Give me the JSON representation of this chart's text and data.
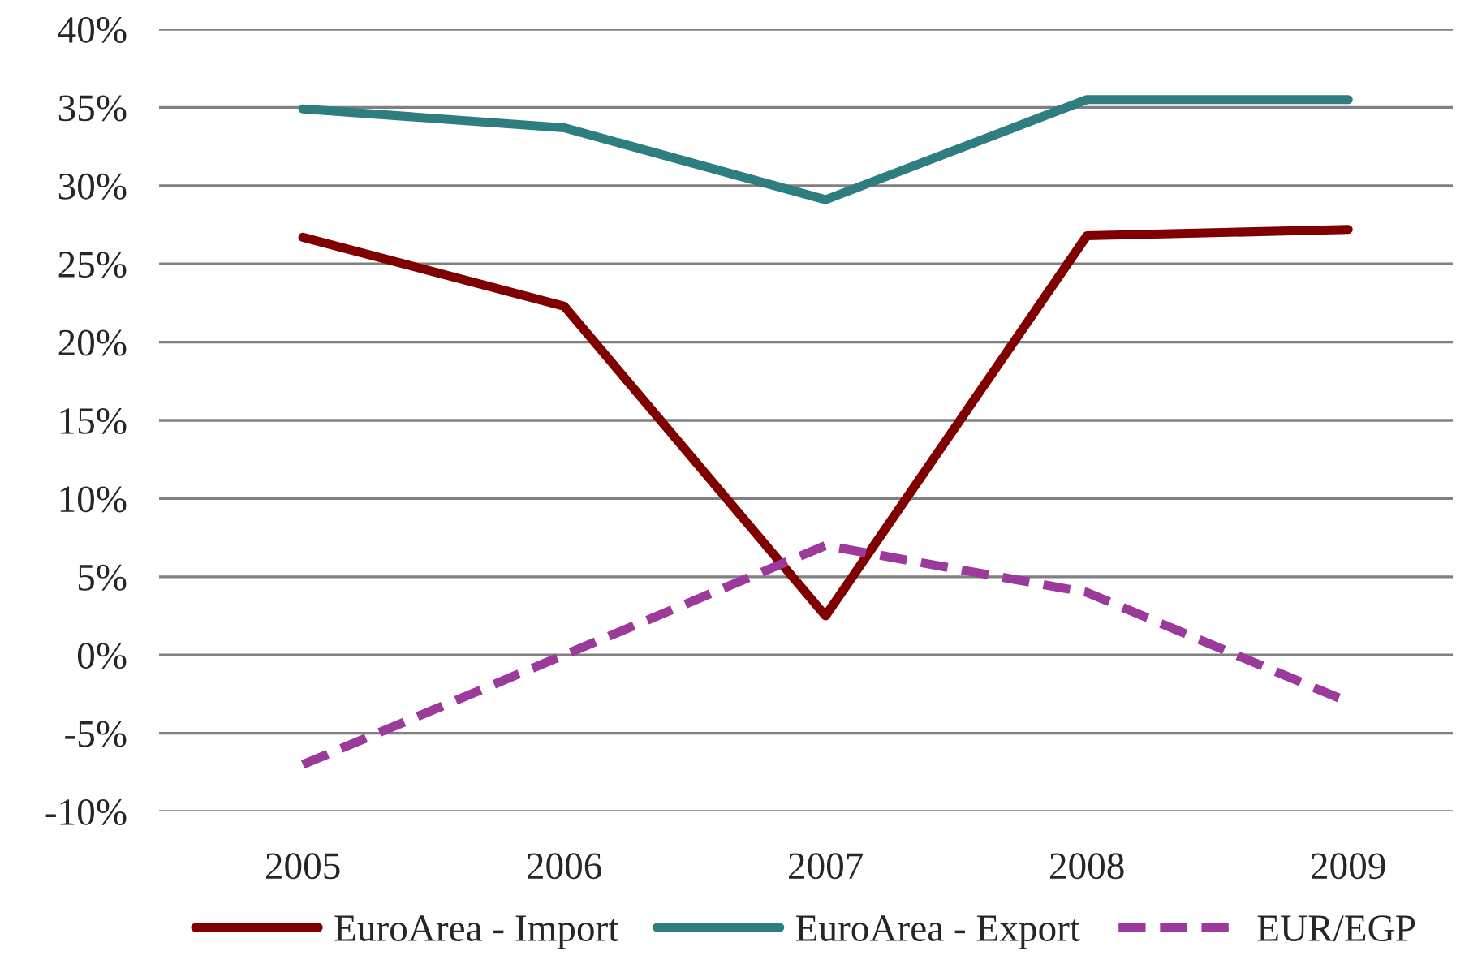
{
  "chart_data": {
    "type": "line",
    "categories": [
      "2005",
      "2006",
      "2007",
      "2008",
      "2009"
    ],
    "series": [
      {
        "name": "EuroArea - Import",
        "color": "#800000",
        "values": [
          26.7,
          22.3,
          2.5,
          26.8,
          27.2
        ],
        "line_style": "solid"
      },
      {
        "name": "EuroArea - Export",
        "color": "#2e7d7f",
        "values": [
          34.9,
          33.7,
          29.1,
          35.5,
          35.5
        ],
        "line_style": "solid"
      },
      {
        "name": "EUR/EGP",
        "color": "#9b3a9b",
        "values": [
          -7.0,
          0.0,
          7.0,
          4.0,
          -3.0
        ],
        "line_style": "dashed"
      }
    ],
    "ylim": [
      -10,
      40
    ],
    "yticks": [
      {
        "value": -10,
        "label": "-10%"
      },
      {
        "value": -5,
        "label": "-5%"
      },
      {
        "value": 0,
        "label": "0%"
      },
      {
        "value": 5,
        "label": "5%"
      },
      {
        "value": 10,
        "label": "10%"
      },
      {
        "value": 15,
        "label": "15%"
      },
      {
        "value": 20,
        "label": "20%"
      },
      {
        "value": 25,
        "label": "25%"
      },
      {
        "value": 30,
        "label": "30%"
      },
      {
        "value": 35,
        "label": "35%"
      },
      {
        "value": 40,
        "label": "40%"
      }
    ],
    "grid": "y",
    "legend": "bottom",
    "marker": "none"
  }
}
